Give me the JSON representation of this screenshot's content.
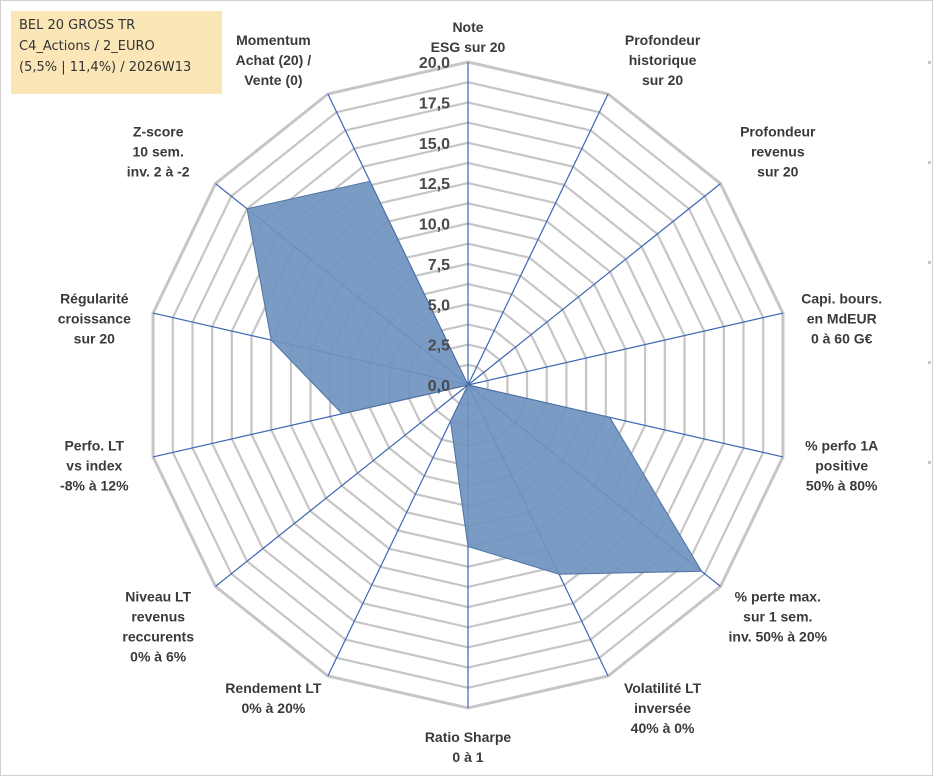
{
  "info_box": {
    "line1": "BEL 20 GROSS TR",
    "line2": "C4_Actions / 2_EURO",
    "line3": "(5,5% | 11,4%) / 2026W13"
  },
  "chart_data": {
    "type": "radar",
    "title": "",
    "rmin": 0,
    "rmax": 20,
    "tick_values": [
      0,
      2.5,
      5,
      7.5,
      10,
      12.5,
      15,
      17.5,
      20
    ],
    "tick_labels": [
      "0,0",
      "2,5",
      "5,0",
      "7,5",
      "10,0",
      "12,5",
      "15,0",
      "17,5",
      "20,0"
    ],
    "axes": [
      [
        "Note",
        "ESG sur 20"
      ],
      [
        "Profondeur",
        "historique",
        "sur 20"
      ],
      [
        "Profondeur",
        "revenus",
        "sur 20"
      ],
      [
        "Capi. bours.",
        "en MdEUR",
        "0 à 60 G€"
      ],
      [
        "% perfo 1A",
        "positive",
        "50% à 80%"
      ],
      [
        "% perte max.",
        "sur 1 sem.",
        "inv. 50% à 20%"
      ],
      [
        "Volatilité LT",
        "inversée",
        "40% à 0%"
      ],
      [
        "Ratio Sharpe",
        "0 à 1"
      ],
      [
        "Rendement LT",
        "0% à 20%"
      ],
      [
        "Niveau LT",
        "revenus",
        "reccurents",
        "0% à 6%"
      ],
      [
        "Perfo. LT",
        "vs index",
        "-8% à 12%"
      ],
      [
        "Régularité",
        "croissance",
        "sur 20"
      ],
      [
        "Z-score",
        "10 sem.",
        "inv. 2 à -2"
      ],
      [
        "Momentum",
        "Achat (20) /",
        "Vente (0)"
      ]
    ],
    "values": [
      0,
      0,
      0,
      0,
      9,
      18.5,
      13,
      10,
      2.5,
      0,
      8,
      12.5,
      17.5,
      14
    ],
    "grid": true,
    "fill_color": "#6f93bf",
    "stroke_color": "#4f72a2",
    "spoke_color": "#3d66b3",
    "ring_color": "#c6c6c6",
    "legend": "none"
  }
}
